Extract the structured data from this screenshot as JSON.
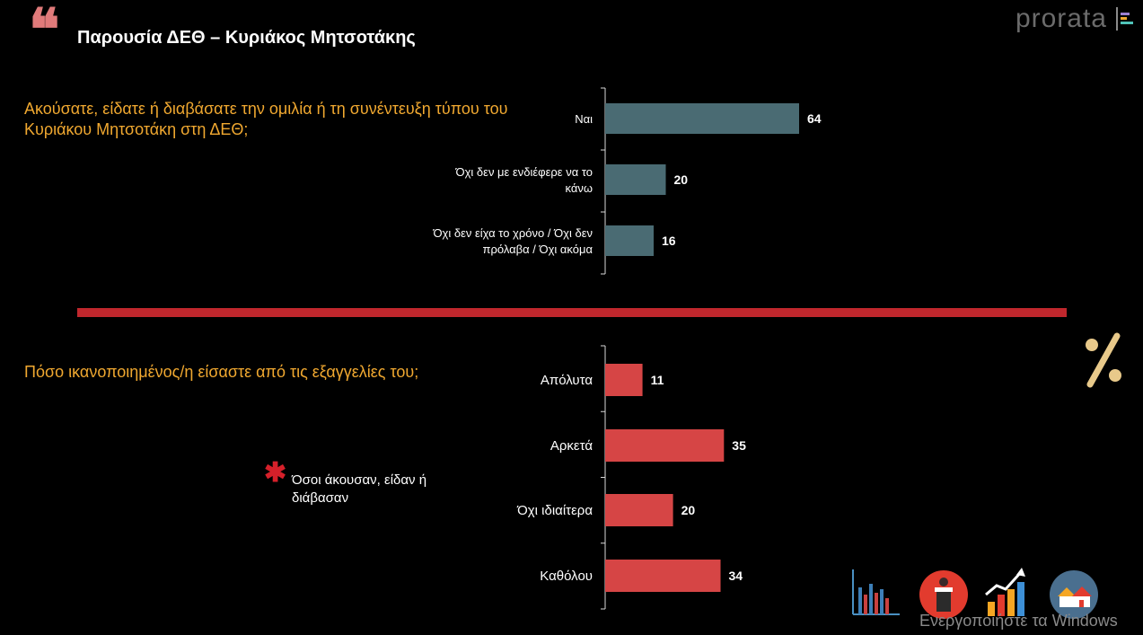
{
  "header": {
    "quote_mark": "❝",
    "title": "Παρουσία ΔΕΘ – Κυριάκος Μητσοτάκης",
    "logo_text": "prorata"
  },
  "questions": {
    "q1": "Ακούσατε, είδατε ή διαβάσατε την ομιλία ή τη συνέντευξη τύπου του Κυριάκου Μητσοτάκη στη ΔΕΘ;",
    "q2": "Πόσο ικανοποιημένος/η είσαστε από τις εξαγγελίες του;"
  },
  "note": {
    "star": "✱",
    "text": "Όσοι άκουσαν, είδαν ή διάβασαν"
  },
  "icons": [
    "percent-icon",
    "bar-chart-icon",
    "podium-speaker-icon",
    "rising-chart-icon",
    "houses-icon"
  ],
  "watermark": "Ενεργοποιήστε τα Windows",
  "colors": {
    "background": "#000000",
    "title": "#ffffff",
    "question": "#f0a830",
    "divider": "#c0272d",
    "bars_q1": "#4a6b73",
    "bars_q2": "#d64545",
    "quote": "#e07a7a"
  },
  "chart_data": [
    {
      "type": "bar",
      "orientation": "horizontal",
      "categories": [
        "Ναι",
        "Όχι δεν με ενδιέφερε να το κάνω",
        "Όχι δεν είχα το χρόνο / Όχι δεν πρόλαβα / Όχι ακόμα"
      ],
      "category_lines": [
        [
          "Ναι"
        ],
        [
          "Όχι δεν με ενδιέφερε να το",
          "κάνω"
        ],
        [
          "Όχι δεν είχα το χρόνο / Όχι δεν",
          "πρόλαβα / Όχι ακόμα"
        ]
      ],
      "values": [
        64,
        20,
        16
      ],
      "xlim": [
        0,
        100
      ],
      "color": "#4a6b73"
    },
    {
      "type": "bar",
      "orientation": "horizontal",
      "categories": [
        "Απόλυτα",
        "Αρκετά",
        "Όχι ιδιαίτερα",
        "Καθόλου"
      ],
      "category_lines": [
        [
          "Απόλυτα"
        ],
        [
          "Αρκετά"
        ],
        [
          "Όχι ιδιαίτερα"
        ],
        [
          "Καθόλου"
        ]
      ],
      "values": [
        11,
        35,
        20,
        34
      ],
      "xlim": [
        0,
        100
      ],
      "color": "#d64545"
    }
  ]
}
